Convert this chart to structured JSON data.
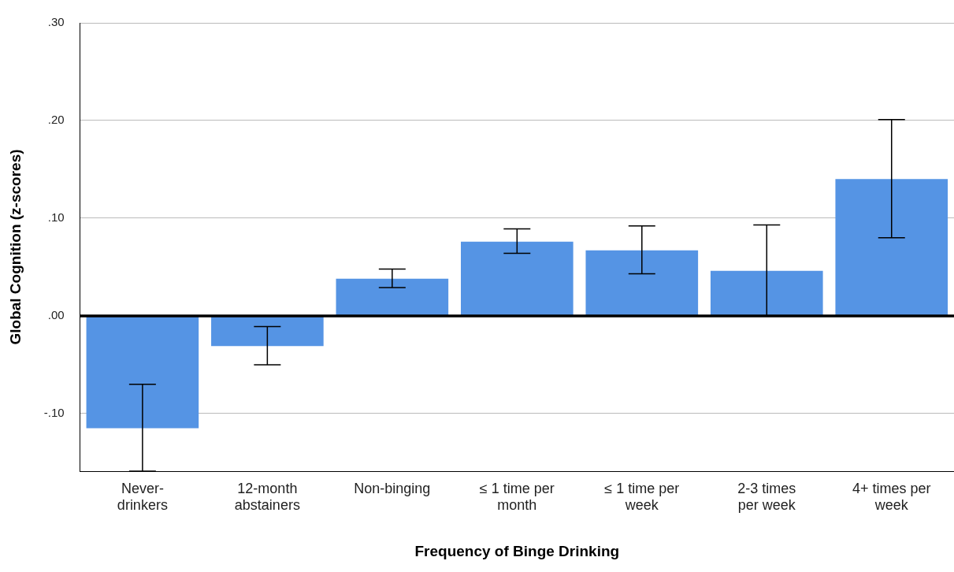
{
  "chart_data": {
    "type": "bar",
    "xlabel": "Frequency of Binge Drinking",
    "ylabel": "Global Cognition (z-scores)",
    "categories": [
      "Never-\ndrinkers",
      "12-month\nabstainers",
      "Non-binging",
      "≤ 1 time per\nmonth",
      "≤ 1 time per\nweek",
      "2-3 times\nper week",
      "4+ times per\nweek"
    ],
    "values": [
      -0.115,
      -0.031,
      0.038,
      0.076,
      0.067,
      0.046,
      0.14
    ],
    "errors": [
      [
        -0.159,
        -0.07
      ],
      [
        -0.05,
        -0.011
      ],
      [
        0.029,
        0.048
      ],
      [
        0.064,
        0.089
      ],
      [
        0.043,
        0.092
      ],
      [
        0.0,
        0.093
      ],
      [
        0.08,
        0.201
      ]
    ],
    "color": "#5594e4",
    "ylim": [
      -0.159,
      0.3
    ],
    "yticks": [
      {
        "value": -0.1,
        "label": "-.10"
      },
      {
        "value": 0,
        "label": ".00"
      },
      {
        "value": 0.1,
        "label": ".10"
      },
      {
        "value": 0.2,
        "label": ".20"
      },
      {
        "value": 0.3,
        "label": ".30"
      }
    ],
    "ref_lines": [
      {
        "axis": "y",
        "value": 0,
        "color": "#000000"
      }
    ],
    "grid": "y"
  }
}
